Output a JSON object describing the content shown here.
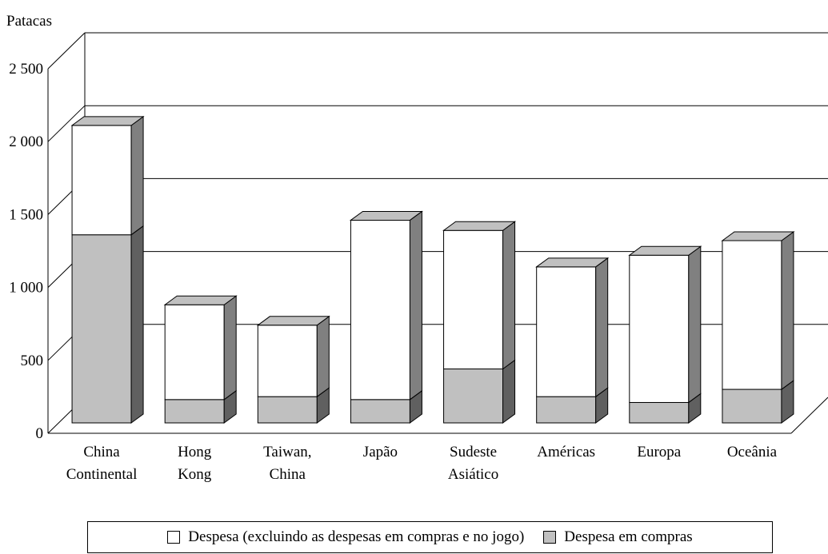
{
  "chart_data": {
    "type": "bar",
    "stacked": true,
    "three_d": true,
    "ylabel": "Patacas",
    "yticks": [
      "0",
      "500",
      "1 000",
      "1 500",
      "2 000",
      "2 500"
    ],
    "ylim": [
      0,
      2500
    ],
    "gridlines": true,
    "categories": [
      [
        "China",
        "Continental"
      ],
      [
        "Hong",
        "Kong"
      ],
      [
        "Taiwan,",
        "China"
      ],
      [
        "Japão"
      ],
      [
        "Sudeste",
        "Asiático"
      ],
      [
        "Américas"
      ],
      [
        "Europa"
      ],
      [
        "Oceânia"
      ]
    ],
    "series": [
      {
        "name": "Despesa em compras",
        "color": "#c0c0c0",
        "values": [
          1290,
          160,
          180,
          160,
          370,
          180,
          140,
          230
        ]
      },
      {
        "name": "Despesa (excluindo as despesas em compras e no jogo)",
        "color": "#ffffff",
        "values": [
          750,
          650,
          490,
          1230,
          950,
          890,
          1010,
          1020
        ]
      }
    ],
    "legend_position": "bottom",
    "legend_order": [
      1,
      0
    ]
  }
}
